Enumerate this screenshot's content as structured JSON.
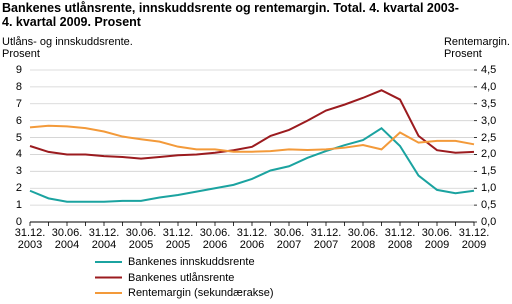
{
  "chart_data": {
    "type": "line",
    "title": "Bankenes utlånsrente, innskuddsrente og rentemargin. Total. 4. kvartal 2003-\n4. kvartal 2009. Prosent",
    "ylabel": "Utlåns- og innskuddsrente.\nProsent",
    "y2label": "Rentemargin.\nProsent",
    "categories": [
      "31.12.\n2003",
      null,
      "30.06.\n2004",
      null,
      "31.12.\n2004",
      null,
      "30.06.\n2005",
      null,
      "31.12.\n2005",
      null,
      "30.06.\n2006",
      null,
      "31.12.\n2006",
      null,
      "30.06.\n2007",
      null,
      "31.12.\n2007",
      null,
      "30.06.\n2008",
      null,
      "31.12.\n2008",
      null,
      "30.06.\n2009",
      null,
      "31.12.\n2009"
    ],
    "ylim": [
      0,
      9
    ],
    "yticks": [
      0,
      1,
      2,
      3,
      4,
      5,
      6,
      7,
      8,
      9
    ],
    "y2lim": [
      0,
      4.5
    ],
    "y2ticks": [
      {
        "value": 0,
        "label": "0,0"
      },
      {
        "value": 0.5,
        "label": "0,5"
      },
      {
        "value": 1,
        "label": "1,0"
      },
      {
        "value": 1.5,
        "label": "1,5"
      },
      {
        "value": 2,
        "label": "2,0"
      },
      {
        "value": 2.5,
        "label": "2,5"
      },
      {
        "value": 3,
        "label": "3,0"
      },
      {
        "value": 3.5,
        "label": "3,5"
      },
      {
        "value": 4,
        "label": "4,0"
      },
      {
        "value": 4.5,
        "label": "4,5"
      }
    ],
    "grid": true,
    "series": [
      {
        "name": "Bankenes innskuddsrente",
        "color": "#1ba3a0",
        "values": [
          1.85,
          1.4,
          1.2,
          1.2,
          1.2,
          1.25,
          1.25,
          1.45,
          1.6,
          1.8,
          2.0,
          2.2,
          2.55,
          3.05,
          3.3,
          3.8,
          4.2,
          4.55,
          4.85,
          5.55,
          4.5,
          2.75,
          1.9,
          1.7,
          1.85
        ]
      },
      {
        "name": "Bankenes utlånsrente",
        "color": "#9b1b1f",
        "values": [
          4.5,
          4.15,
          4.0,
          4.0,
          3.9,
          3.85,
          3.75,
          3.85,
          3.95,
          4.0,
          4.1,
          4.25,
          4.45,
          5.1,
          5.45,
          6.0,
          6.6,
          6.95,
          7.35,
          7.8,
          7.25,
          5.1,
          4.25,
          4.1,
          4.15
        ]
      },
      {
        "name": "Rentemargin (sekundærakse)",
        "color": "#f39a3a",
        "axis": "y2",
        "values": [
          2.8,
          2.85,
          2.83,
          2.78,
          2.68,
          2.53,
          2.45,
          2.38,
          2.23,
          2.15,
          2.15,
          2.08,
          2.08,
          2.1,
          2.15,
          2.13,
          2.15,
          2.2,
          2.28,
          2.15,
          2.65,
          2.35,
          2.4,
          2.4,
          2.3
        ]
      }
    ]
  }
}
